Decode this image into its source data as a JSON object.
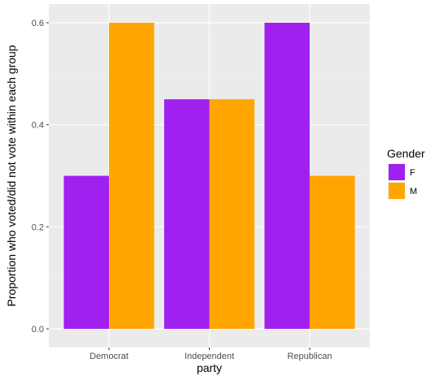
{
  "chart_data": {
    "type": "bar",
    "categories": [
      "Democrat",
      "Independent",
      "Republican"
    ],
    "series": [
      {
        "name": "F",
        "values": [
          0.3,
          0.45,
          0.6
        ]
      },
      {
        "name": "M",
        "values": [
          0.6,
          0.45,
          0.3
        ]
      }
    ],
    "xlabel": "party",
    "ylabel": "Proportion who voted/did not vote within each group",
    "ylim": [
      -0.0366,
      0.6366
    ],
    "yticks": [
      0.0,
      0.2,
      0.4,
      0.6
    ],
    "ytick_labels": [
      "0.0",
      "0.2",
      "0.4",
      "0.6"
    ],
    "legend": {
      "title": "Gender",
      "placement": "right"
    },
    "grid": true,
    "colors": {
      "F": "#a020f0",
      "M": "#ffa500",
      "panel": "#ebebeb",
      "grid_major": "#ffffff",
      "grid_minor": "#f5f5f5"
    }
  }
}
